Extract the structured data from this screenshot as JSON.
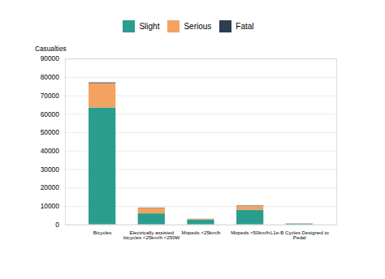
{
  "chart_data": {
    "type": "bar",
    "stacked": true,
    "categories": [
      "Bicycles",
      "Electrically assisted\nbicycles <25km/h <250W",
      "Mopeds <25km/h",
      "Mopeds <50km/h",
      "L1e-B Cycles Designed to\nPedal"
    ],
    "series": [
      {
        "name": "Slight",
        "color": "#2a9d8f",
        "values": [
          63500,
          6000,
          2700,
          8000,
          490
        ]
      },
      {
        "name": "Serious",
        "color": "#f4a261",
        "values": [
          13200,
          3000,
          380,
          2200,
          90
        ]
      },
      {
        "name": "Fatal",
        "color": "#2c3e50",
        "values": [
          400,
          180,
          45,
          190,
          15
        ]
      }
    ],
    "ylabel": "Casualties",
    "ylim": [
      0,
      90000
    ],
    "yticks": [
      0,
      10000,
      20000,
      30000,
      40000,
      50000,
      60000,
      70000,
      80000,
      90000
    ],
    "grid": true,
    "legend": "upper center"
  }
}
